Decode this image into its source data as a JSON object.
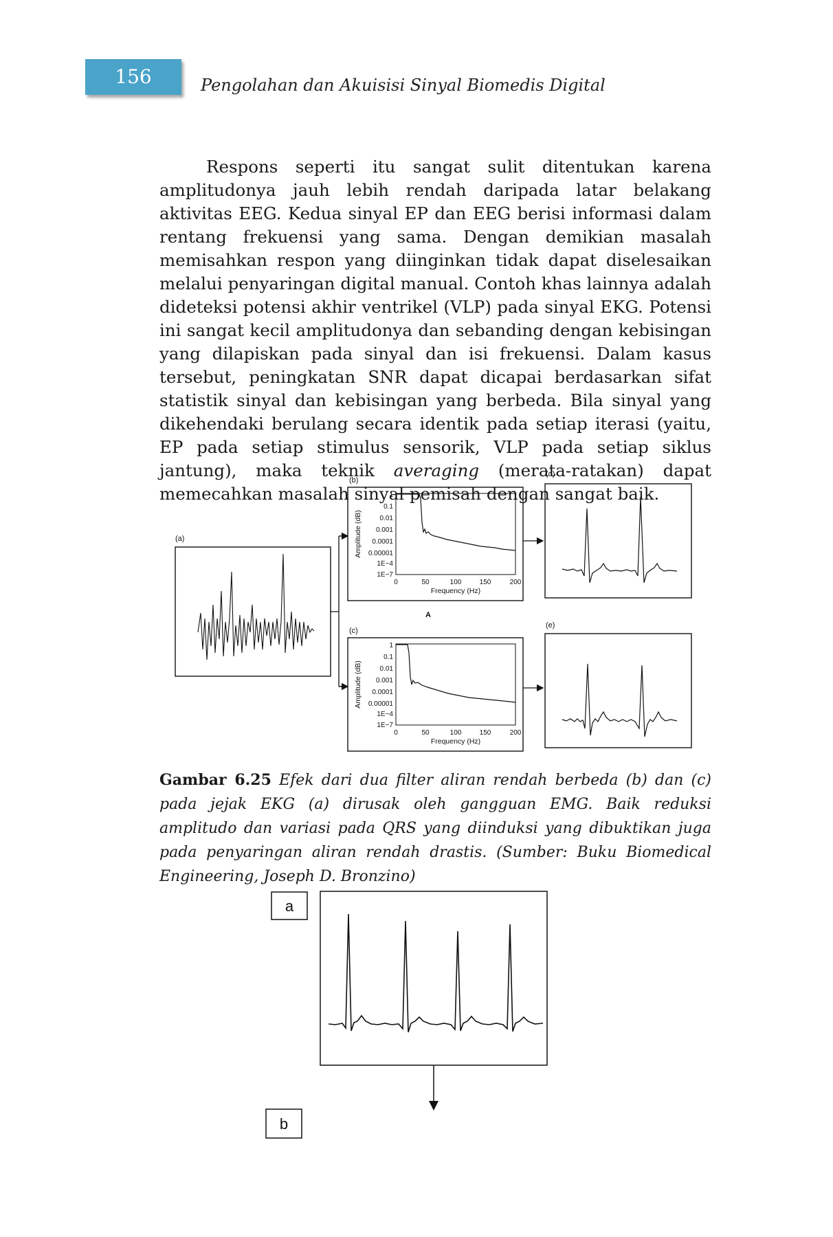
{
  "header": {
    "page_number": "156",
    "running_title": "Pengolahan dan Akuisisi Sinyal Biomedis Digital"
  },
  "paragraph": {
    "part1": "Respons seperti itu sangat sulit ditentukan karena amplitudonya jauh lebih rendah daripada latar belakang aktivitas EEG. Kedua sinyal EP dan EEG berisi informasi dalam rentang frekuensi yang sama. Dengan demikian masalah memisahkan respon yang diinginkan tidak dapat diselesaikan melalui penyaringan digital manual. Contoh khas lainnya adalah dideteksi potensi akhir ventrikel (VLP) pada sinyal EKG. Potensi ini sangat kecil amplitudonya dan sebanding dengan kebisingan yang dilapiskan pada sinyal dan isi frekuensi. Dalam kasus tersebut, peningkatan SNR dapat dicapai berdasarkan sifat statistik sinyal dan kebisingan yang berbeda. Bila sinyal yang dikehendaki berulang secara identik pada setiap iterasi (yaitu, EP pada setiap stimulus sensorik, VLP pada setiap siklus jantung), maka teknik ",
    "emphasis": "averaging",
    "part2": " (merata-ratakan) dapat memecahkan masalah sinyal pemisah dengan sangat baik."
  },
  "figure_625": {
    "panel_a_label": "(a)",
    "panel_b_label": "(b)",
    "panel_c_label": "(c)",
    "panel_d_label": "(d)",
    "panel_e_label": "(e)",
    "center_label": "A",
    "y_axis_label": "Amplitude (dB)",
    "x_axis_label": "Frequency (Hz)",
    "y_ticks": [
      "1",
      "0.1",
      "0.01",
      "0.001",
      "0.0001",
      "0.00001",
      "1E−4",
      "1E−7"
    ],
    "x_ticks": [
      "0",
      "50",
      "100",
      "150",
      "200"
    ]
  },
  "caption": {
    "label": "Gambar 6.25",
    "text": " Efek dari dua filter aliran rendah berbeda (b) dan (c) pada jejak EKG (a) dirusak oleh gangguan EMG. Baik reduksi amplitudo dan variasi pada QRS yang diinduksi yang dibuktikan juga pada penyaringan aliran rendah drastis. (Sumber: Buku Biomedical Engineering, Joseph D. Bronzino)"
  },
  "figure_bottom": {
    "label_a": "a",
    "label_b": "b"
  }
}
